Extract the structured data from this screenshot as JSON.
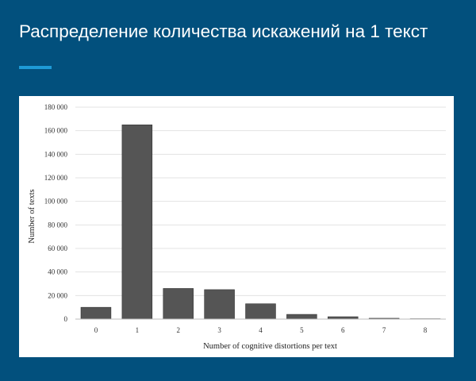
{
  "title": "Распределение количества искажений на 1 текст",
  "colors": {
    "background": "#02507d",
    "accent": "#1e9ad6",
    "panel": "#ffffff",
    "bar": "#555555",
    "bar_stroke": "#333333",
    "grid": "#e3e3e3"
  },
  "chart_data": {
    "type": "bar",
    "categories": [
      "0",
      "1",
      "2",
      "3",
      "4",
      "5",
      "6",
      "7",
      "8"
    ],
    "values": [
      10000,
      165000,
      26000,
      25000,
      13000,
      4000,
      2000,
      700,
      300
    ],
    "xlabel": "Number of cognitive distortions per text",
    "ylabel": "Number of texts",
    "ylim": [
      0,
      180000
    ],
    "yticks": [
      0,
      20000,
      40000,
      60000,
      80000,
      100000,
      120000,
      140000,
      160000,
      180000
    ],
    "ytick_labels": [
      "0",
      "20 000",
      "40 000",
      "60 000",
      "80 000",
      "100 000",
      "120 000",
      "140 000",
      "160 000",
      "180 000"
    ],
    "grid": true,
    "legend": "none"
  }
}
